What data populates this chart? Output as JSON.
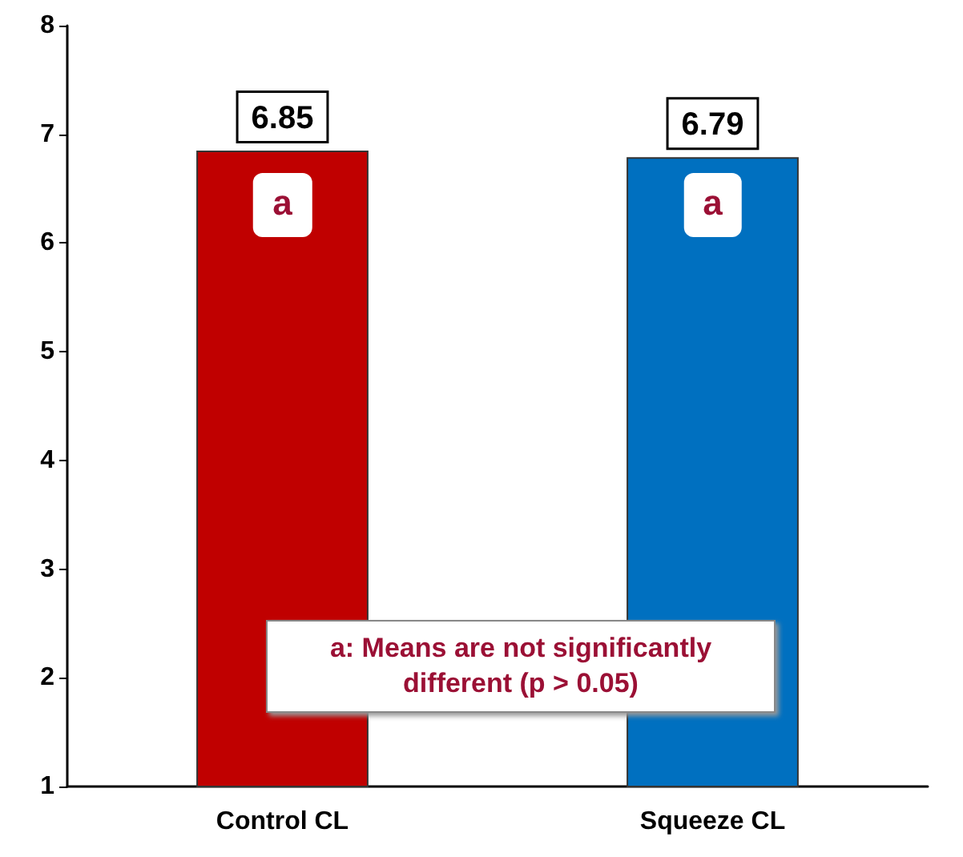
{
  "chart_data": {
    "type": "bar",
    "categories": [
      "Control CL",
      "Squeeze CL"
    ],
    "values": [
      6.85,
      6.79
    ],
    "colors": [
      "#c00000",
      "#0070c0"
    ],
    "ylim": [
      1,
      8
    ],
    "yticks": [
      1,
      2,
      3,
      4,
      5,
      6,
      7,
      8
    ],
    "grid": false,
    "data_labels": true,
    "annotations": [
      {
        "text": "a",
        "x": "Control CL",
        "y": 6.35
      },
      {
        "text": "a",
        "x": "Squeeze CL",
        "y": 6.35
      },
      "a: Means are not significantly different (p > 0.05)"
    ]
  }
}
